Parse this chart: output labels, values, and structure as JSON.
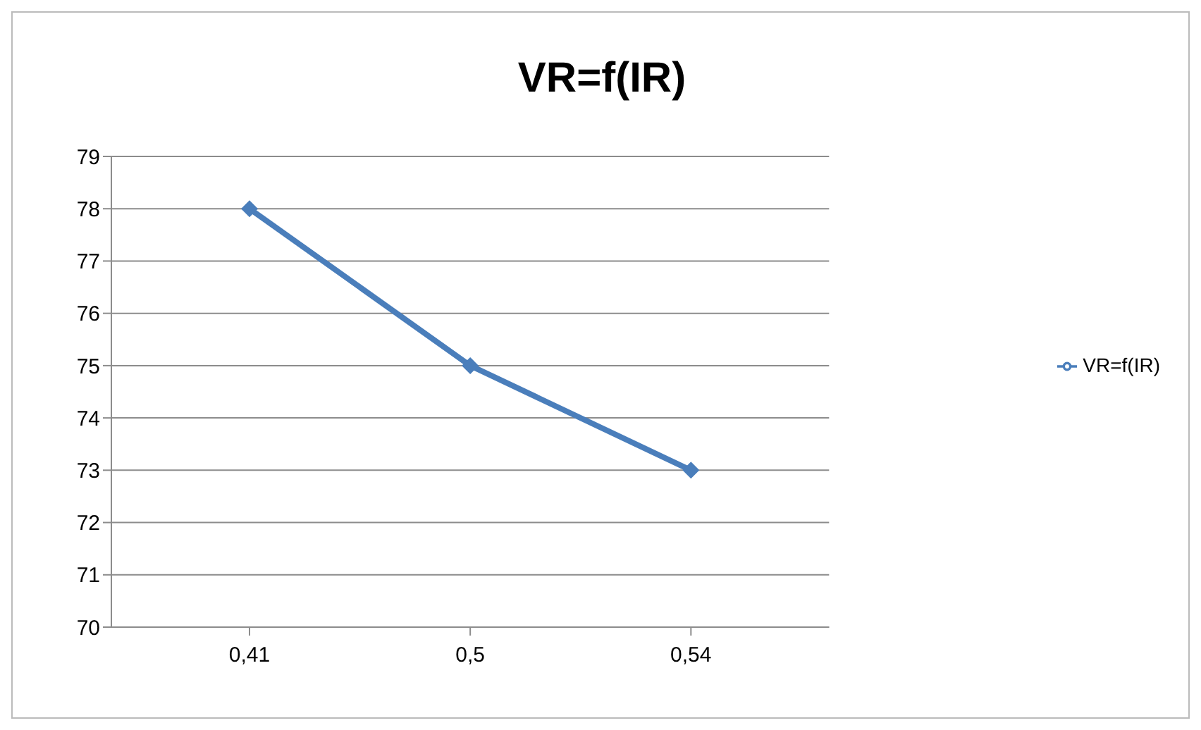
{
  "chart_data": {
    "type": "line",
    "title": "VR=f(IR)",
    "categories": [
      "0,41",
      "0,5",
      "0,54"
    ],
    "series": [
      {
        "name": "VR=f(IR)",
        "color": "#4a7ebb",
        "values": [
          78,
          75,
          73
        ]
      }
    ],
    "ylim": [
      70,
      79
    ],
    "yticks": [
      70,
      71,
      72,
      73,
      74,
      75,
      76,
      77,
      78,
      79
    ],
    "grid": "y",
    "legend": "right",
    "marker": "diamond",
    "line_style": "solid"
  }
}
